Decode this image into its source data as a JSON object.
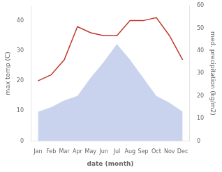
{
  "chart_data": {
    "type": "line",
    "xlabel": "date (month)",
    "ylabel": "max temp (C)",
    "y2label": "med. precipitation (kg/m2)",
    "categories": [
      "Jan",
      "Feb",
      "Mar",
      "Apr",
      "May",
      "Jun",
      "Jul",
      "Aug",
      "Sep",
      "Oct",
      "Nov",
      "Dec"
    ],
    "series": [
      {
        "type": "area",
        "axis": "y2",
        "color": "#b8c4e8",
        "values": [
          13,
          15,
          18,
          20,
          28,
          35,
          43,
          36,
          28,
          20,
          17,
          13
        ]
      },
      {
        "type": "line",
        "color": "#c0392b",
        "values": [
          20,
          22,
          27,
          38,
          36,
          35,
          35,
          40,
          40,
          41,
          35,
          27
        ]
      }
    ],
    "ylim": [
      0,
      45
    ],
    "yticks": [
      0,
      10,
      20,
      30,
      40
    ],
    "y2lim": [
      0,
      60
    ],
    "y2ticks": [
      0,
      10,
      20,
      30,
      40,
      50,
      60
    ],
    "grid": false
  }
}
